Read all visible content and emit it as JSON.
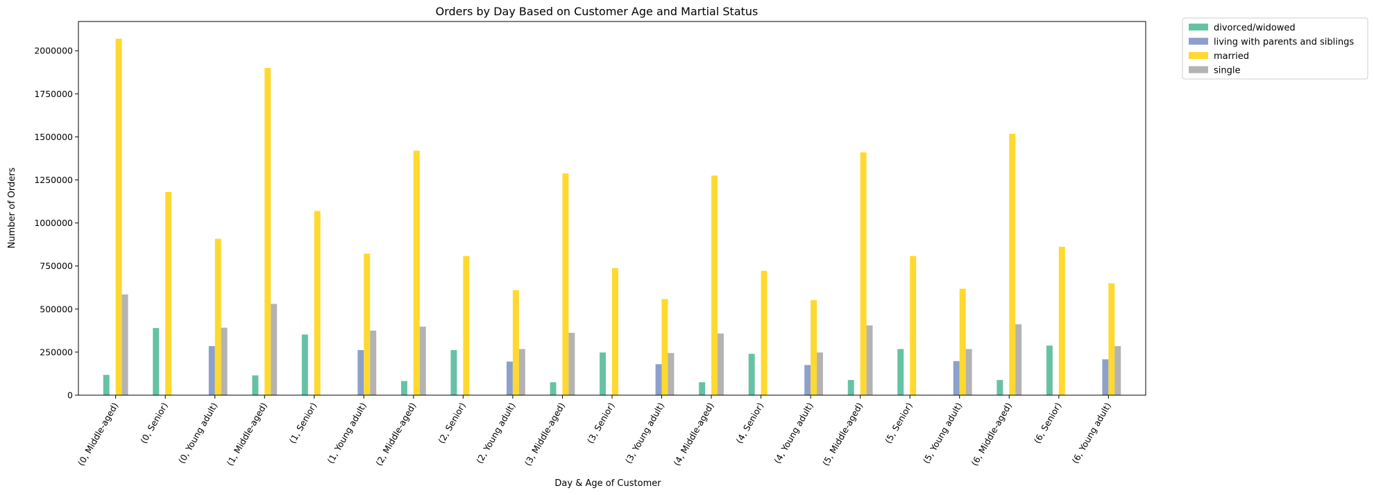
{
  "chart_data": {
    "type": "bar",
    "title": "Orders by Day Based on Customer Age and Martial Status",
    "xlabel": "Day & Age of Customer",
    "ylabel": "Number of Orders",
    "ylim": [
      0,
      2170000
    ],
    "yticks": [
      0,
      250000,
      500000,
      750000,
      1000000,
      1250000,
      1500000,
      1750000,
      2000000
    ],
    "ytick_labels": [
      "0",
      "250000",
      "500000",
      "750000",
      "1000000",
      "1250000",
      "1500000",
      "1750000",
      "2000000"
    ],
    "grid": false,
    "legend_position": "outside-top-right",
    "categories": [
      "(0, Middle-aged)",
      "(0, Senior)",
      "(0, Young adult)",
      "(1, Middle-aged)",
      "(1, Senior)",
      "(1, Young adult)",
      "(2, Middle-aged)",
      "(2, Senior)",
      "(2, Young adult)",
      "(3, Middle-aged)",
      "(3, Senior)",
      "(3, Young adult)",
      "(4, Middle-aged)",
      "(4, Senior)",
      "(4, Young adult)",
      "(5, Middle-aged)",
      "(5, Senior)",
      "(5, Young adult)",
      "(6, Middle-aged)",
      "(6, Senior)",
      "(6, Young adult)"
    ],
    "series": [
      {
        "name": "divorced/widowed",
        "color": "#66c2a5",
        "values": [
          118000,
          390000,
          0,
          115000,
          352000,
          0,
          82000,
          262000,
          0,
          75000,
          248000,
          0,
          75000,
          240000,
          0,
          88000,
          268000,
          0,
          88000,
          288000,
          0
        ]
      },
      {
        "name": "living with parents and siblings",
        "color": "#8da0cb",
        "values": [
          0,
          0,
          285000,
          0,
          0,
          262000,
          0,
          0,
          195000,
          0,
          0,
          180000,
          0,
          0,
          175000,
          0,
          0,
          198000,
          0,
          0,
          208000
        ]
      },
      {
        "name": "married",
        "color": "#ffd92f",
        "values": [
          2070000,
          1180000,
          908000,
          1900000,
          1070000,
          822000,
          1420000,
          808000,
          610000,
          1288000,
          738000,
          558000,
          1275000,
          722000,
          552000,
          1410000,
          808000,
          618000,
          1518000,
          862000,
          650000
        ]
      },
      {
        "name": "single",
        "color": "#b3b3b3",
        "values": [
          585000,
          0,
          392000,
          530000,
          0,
          375000,
          398000,
          0,
          268000,
          362000,
          0,
          245000,
          358000,
          0,
          248000,
          405000,
          0,
          268000,
          412000,
          0,
          285000
        ]
      }
    ]
  }
}
